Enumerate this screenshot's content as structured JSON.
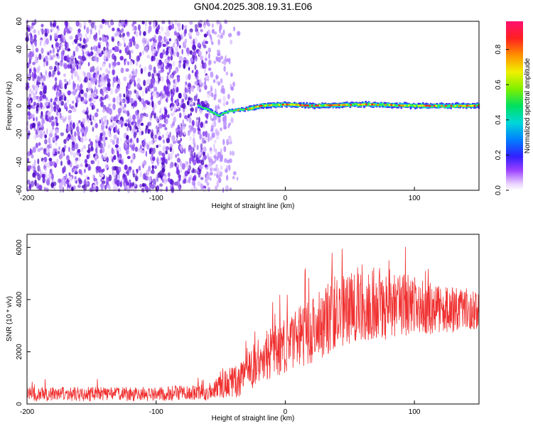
{
  "title": "GN04.2025.308.19.31.E06",
  "chart_data": [
    {
      "type": "heatmap",
      "xlabel": "Height of straight line (km)",
      "ylabel": "Frequency (Hz)",
      "xlim": [
        -200,
        150
      ],
      "ylim": [
        -60,
        60
      ],
      "xticks": [
        -200,
        -100,
        0,
        100
      ],
      "yticks": [
        -60,
        -40,
        -20,
        0,
        20,
        40,
        60
      ],
      "colorbar": {
        "label": "Normalized spectral amplitude",
        "range": [
          0,
          0.96
        ],
        "ticks": [
          0.0,
          0.2,
          0.4,
          0.6,
          0.8
        ]
      },
      "features": {
        "noise_region_x": [
          -200,
          -60
        ],
        "noise_fade_x": [
          -60,
          -35
        ],
        "signal_track": [
          {
            "x": -68,
            "y": 0
          },
          {
            "x": -60,
            "y": -3
          },
          {
            "x": -52,
            "y": -7
          },
          {
            "x": -45,
            "y": -4
          },
          {
            "x": -38,
            "y": -3
          },
          {
            "x": -28,
            "y": -2
          },
          {
            "x": -20,
            "y": 0
          },
          {
            "x": 0,
            "y": 1
          },
          {
            "x": 20,
            "y": 0
          },
          {
            "x": 60,
            "y": 1
          },
          {
            "x": 100,
            "y": 0
          },
          {
            "x": 150,
            "y": 0
          }
        ]
      }
    },
    {
      "type": "line",
      "xlabel": "Height of straight line (km)",
      "ylabel": "SNR (10 * v/v)",
      "xlim": [
        -200,
        150
      ],
      "ylim": [
        0,
        6500
      ],
      "xticks": [
        -200,
        -100,
        0,
        100
      ],
      "yticks": [
        0,
        2000,
        4000,
        6000
      ],
      "series": [
        {
          "name": "SNR",
          "color": "#f03030",
          "envelope": [
            {
              "x": -200,
              "mean": 380,
              "spread": 280
            },
            {
              "x": -100,
              "mean": 380,
              "spread": 280
            },
            {
              "x": -60,
              "mean": 450,
              "spread": 320
            },
            {
              "x": -45,
              "mean": 800,
              "spread": 550
            },
            {
              "x": -35,
              "mean": 900,
              "spread": 650
            },
            {
              "x": -20,
              "mean": 1700,
              "spread": 900
            },
            {
              "x": 0,
              "mean": 2200,
              "spread": 1100
            },
            {
              "x": 20,
              "mean": 2800,
              "spread": 1300
            },
            {
              "x": 40,
              "mean": 3600,
              "spread": 1500
            },
            {
              "x": 60,
              "mean": 3900,
              "spread": 1500
            },
            {
              "x": 90,
              "mean": 3800,
              "spread": 1300
            },
            {
              "x": 120,
              "mean": 3600,
              "spread": 900
            },
            {
              "x": 150,
              "mean": 3600,
              "spread": 800
            }
          ]
        }
      ]
    }
  ]
}
